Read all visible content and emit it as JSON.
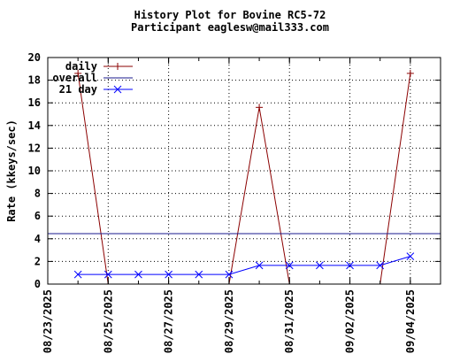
{
  "chart_data": {
    "type": "line",
    "title": "History Plot for Bovine RC5-72",
    "subtitle": "Participant eaglesw@mail333.com",
    "ylabel": "Rate (kkeys/sec)",
    "xlabel": "",
    "ylim": [
      0,
      20
    ],
    "yticks": [
      0,
      2,
      4,
      6,
      8,
      10,
      12,
      14,
      16,
      18,
      20
    ],
    "xlim": [
      "08/23/2025",
      "09/05/2025"
    ],
    "xticks": [
      "08/23/2025",
      "08/25/2025",
      "08/27/2025",
      "08/29/2025",
      "08/31/2025",
      "09/02/2025",
      "09/04/2025"
    ],
    "grid": true,
    "legend_position": "top-left",
    "series": [
      {
        "name": "daily",
        "color": "#8b0000",
        "marker": "plus",
        "points": [
          {
            "x": "08/24/2025",
            "y": 18.6
          },
          {
            "x": "08/25/2025",
            "y": 0
          },
          {
            "x": "08/29/2025",
            "y": 0
          },
          {
            "x": "08/30/2025",
            "y": 15.6
          },
          {
            "x": "08/31/2025",
            "y": 0
          },
          {
            "x": "09/03/2025",
            "y": 0
          },
          {
            "x": "09/04/2025",
            "y": 18.6
          }
        ]
      },
      {
        "name": "overall",
        "color": "#1a1a8c",
        "marker": "none",
        "points": [
          {
            "x": "08/23/2025",
            "y": 4.45
          },
          {
            "x": "09/05/2025",
            "y": 4.45
          }
        ]
      },
      {
        "name": "21 day",
        "color": "#0000ff",
        "marker": "cross",
        "points": [
          {
            "x": "08/24/2025",
            "y": 0.85
          },
          {
            "x": "08/25/2025",
            "y": 0.85
          },
          {
            "x": "08/26/2025",
            "y": 0.85
          },
          {
            "x": "08/27/2025",
            "y": 0.85
          },
          {
            "x": "08/28/2025",
            "y": 0.85
          },
          {
            "x": "08/29/2025",
            "y": 0.85
          },
          {
            "x": "08/30/2025",
            "y": 1.65
          },
          {
            "x": "08/31/2025",
            "y": 1.65
          },
          {
            "x": "09/01/2025",
            "y": 1.65
          },
          {
            "x": "09/02/2025",
            "y": 1.65
          },
          {
            "x": "09/03/2025",
            "y": 1.65
          },
          {
            "x": "09/04/2025",
            "y": 2.45
          }
        ]
      }
    ]
  }
}
